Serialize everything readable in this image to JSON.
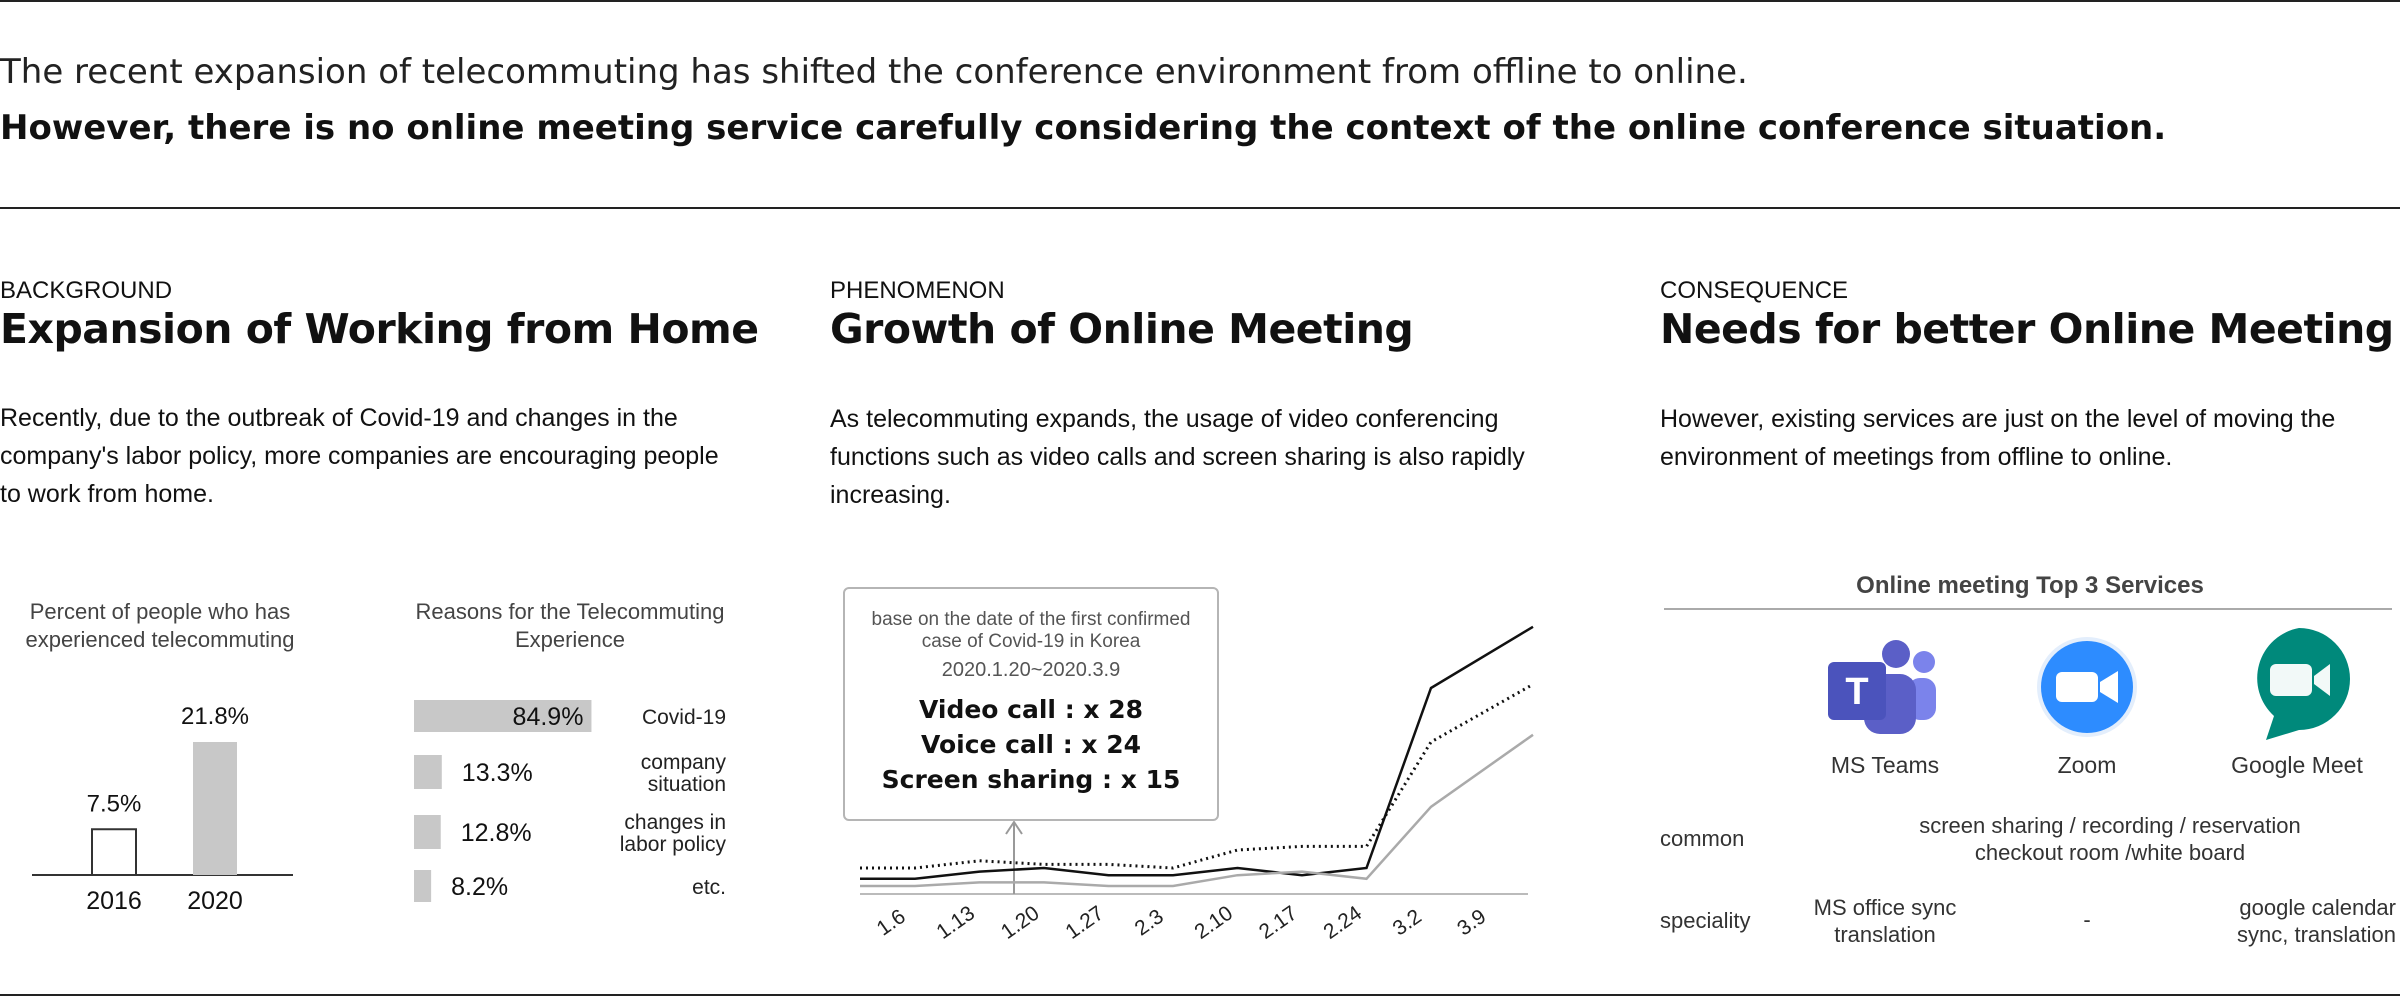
{
  "headline": {
    "line1": "The recent expansion of telecommuting has shifted the conference environment from offline to online.",
    "line2": "However, there is no online meeting service carefully considering the context of the online conference situation."
  },
  "sections": {
    "background": {
      "eyebrow": "BACKGROUND",
      "title": "Expansion of Working from Home",
      "body": "Recently, due to the outbreak of Covid-19 and changes in the company's labor policy, more companies are encouraging people to work from home."
    },
    "phenomenon": {
      "eyebrow": "PHENOMENON",
      "title": "Growth of Online Meeting",
      "body": "As telecommuting expands, the usage of video conferencing functions such as video calls and screen sharing is also rapidly increasing."
    },
    "consequence": {
      "eyebrow": "CONSEQUENCE",
      "title": "Needs for better Online Meeting",
      "body": "However, existing services are just on the level of moving the environment of meetings from offline to online."
    }
  },
  "chart_data": [
    {
      "type": "bar",
      "title": "Percent of people who has experienced telecommuting",
      "categories": [
        "2016",
        "2020"
      ],
      "values": [
        7.5,
        21.8
      ],
      "value_labels": [
        "7.5%",
        "21.8%"
      ],
      "colors": [
        "#ffffff",
        "#c8c8c8"
      ]
    },
    {
      "type": "bar",
      "orientation": "horizontal",
      "title": "Reasons for the Telecommuting Experience",
      "categories": [
        "Covid-19",
        "company situation",
        "changes in labor policy",
        "etc."
      ],
      "values": [
        84.9,
        13.3,
        12.8,
        8.2
      ],
      "value_labels": [
        "84.9%",
        "13.3%",
        "12.8%",
        "8.2%"
      ]
    },
    {
      "type": "line",
      "x": [
        "1.6",
        "1.13",
        "1.20",
        "1.27",
        "2.3",
        "2.10",
        "2.17",
        "2.24",
        "3.2",
        "3.9"
      ],
      "series": [
        {
          "style": "solid-black",
          "values": [
            2,
            4,
            5,
            3,
            3,
            5,
            3,
            5,
            55,
            72
          ]
        },
        {
          "style": "dotted-black",
          "values": [
            5,
            7,
            6,
            6,
            5,
            10,
            11,
            11,
            40,
            56
          ]
        },
        {
          "style": "solid-gray",
          "values": [
            0,
            1,
            1,
            0,
            0,
            3,
            4,
            2,
            22,
            42
          ]
        }
      ],
      "callout": {
        "note": "base on the date of the first confirmed case of Covid-19 in Korea",
        "range": "2020.1.20~2020.3.9",
        "stats": [
          "Video call : x 28",
          "Voice call : x 24",
          "Screen sharing : x 15"
        ]
      }
    },
    {
      "type": "table",
      "title": "Online meeting Top 3 Services",
      "columns": [
        "MS Teams",
        "Zoom",
        "Google Meet"
      ],
      "rows": [
        {
          "label": "common",
          "merged": "screen sharing / recording / reservation checkout room /white board"
        },
        {
          "label": "speciality",
          "cells": [
            "MS office sync translation",
            "-",
            "google calendar sync, translation"
          ]
        }
      ],
      "brand_colors": {
        "ms_teams": "#5b5fc7",
        "zoom": "#2d8cff",
        "google_meet": "#00897b"
      }
    }
  ]
}
